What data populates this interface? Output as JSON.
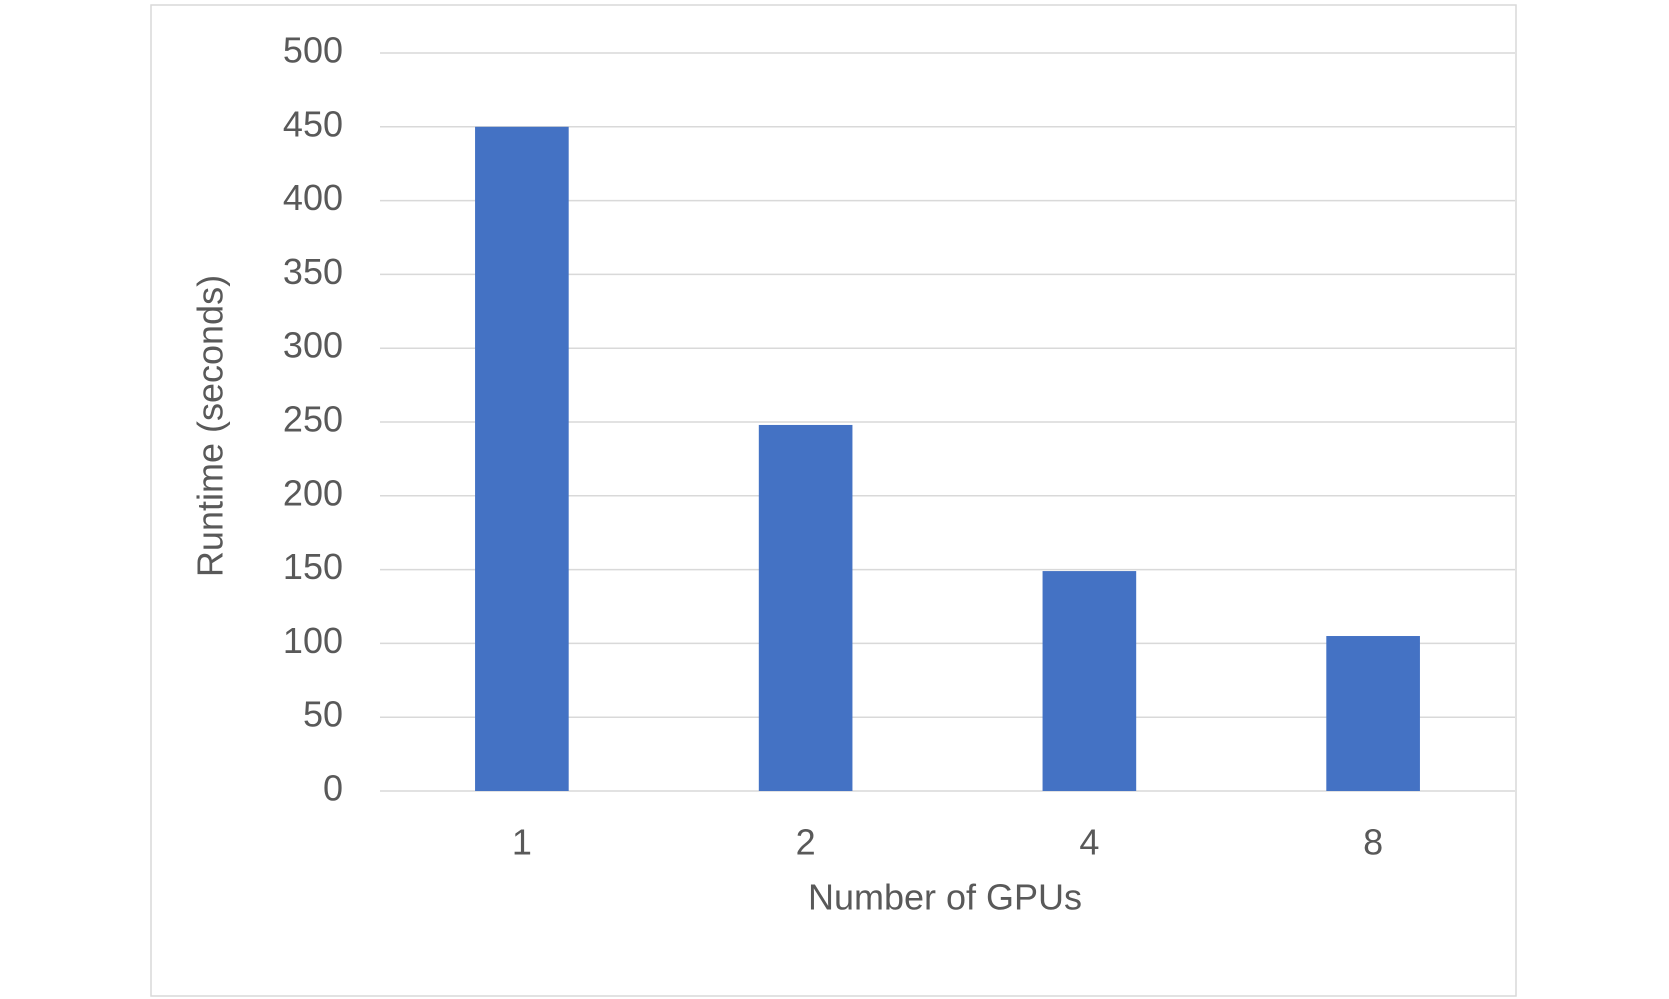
{
  "chart_data": {
    "type": "bar",
    "x_label": "Number of GPUs",
    "y_label": "Runtime (seconds)",
    "categories": [
      "1",
      "2",
      "4",
      "8"
    ],
    "values": [
      450,
      248,
      149,
      105
    ],
    "color": "#4472c4",
    "ylim": [
      0,
      500
    ],
    "yticks": [
      0,
      50,
      100,
      150,
      200,
      250,
      300,
      350,
      400,
      450,
      500
    ],
    "grid": true
  }
}
